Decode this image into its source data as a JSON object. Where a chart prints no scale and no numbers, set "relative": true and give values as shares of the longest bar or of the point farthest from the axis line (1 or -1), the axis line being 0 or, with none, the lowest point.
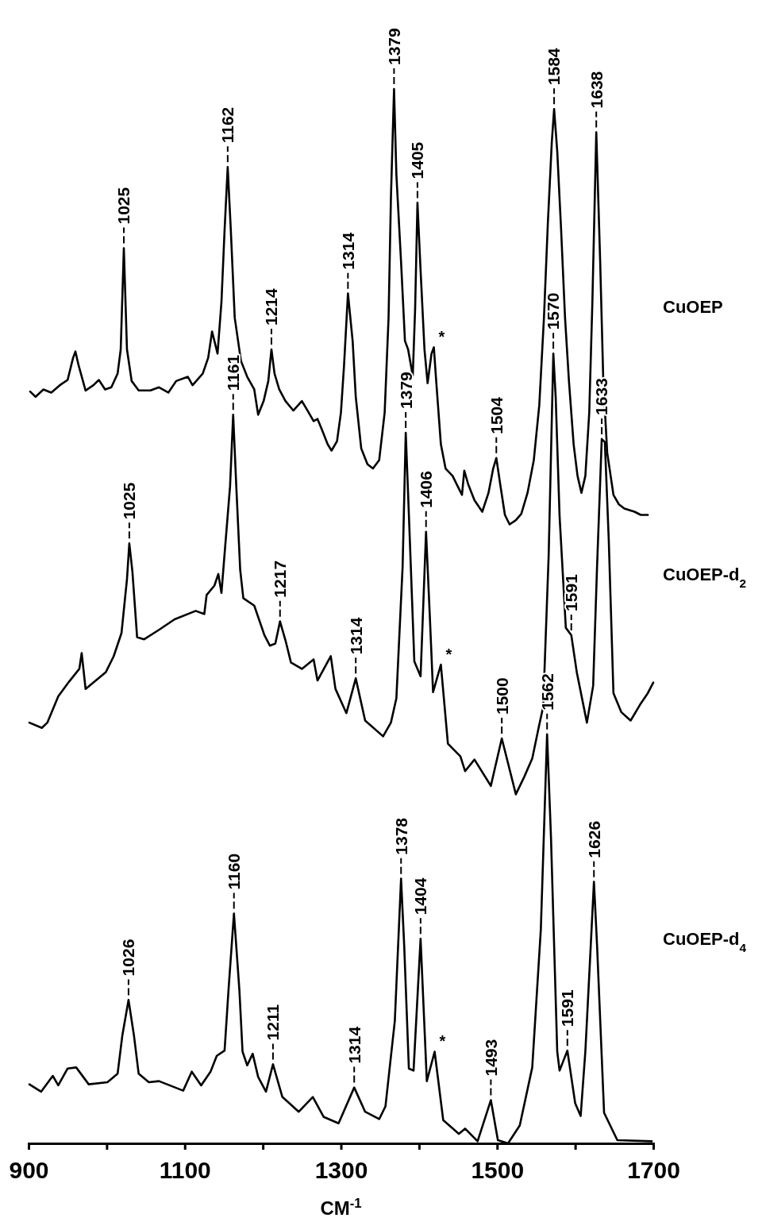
{
  "chart_data": {
    "type": "line",
    "relative": true,
    "xlabel": "CM$^{-1}$",
    "xlim": [
      900,
      1700
    ],
    "xticks": [
      900,
      {
        "value": 1000,
        "label": null
      },
      1100,
      {
        "value": 1200,
        "label": null
      },
      1300,
      {
        "value": 1400,
        "label": null
      },
      1500,
      {
        "value": 1600,
        "label": null
      },
      1700
    ],
    "tick_labels": "x",
    "line_style": "solid",
    "marker": "none",
    "series": [
      {
        "name": "CuOEP",
        "color": "#000000",
        "x": [
          902,
          909,
          919,
          929,
          940,
          950,
          957,
          960,
          964,
          973,
          983,
          990,
          998,
          1006,
          1014,
          1018,
          1022,
          1026,
          1032,
          1041,
          1056,
          1067,
          1079,
          1089,
          1104,
          1110,
          1123,
          1130,
          1135,
          1142,
          1147,
          1151,
          1155,
          1159,
          1164,
          1172,
          1180,
          1189,
          1194,
          1201,
          1207,
          1211,
          1215,
          1221,
          1229,
          1239,
          1250,
          1258,
          1265,
          1270,
          1275,
          1283,
          1288,
          1295,
          1300,
          1304,
          1309,
          1315,
          1319,
          1326,
          1334,
          1341,
          1349,
          1356,
          1361,
          1364,
          1368,
          1371,
          1377,
          1382,
          1386,
          1392,
          1395,
          1398,
          1402,
          1407,
          1411,
          1416,
          1419,
          1422,
          1428,
          1434,
          1443,
          1451,
          1455,
          1458,
          1463,
          1471,
          1481,
          1489,
          1495,
          1499,
          1504,
          1510,
          1516,
          1524,
          1531,
          1539,
          1547,
          1554,
          1560,
          1565,
          1570,
          1573,
          1577,
          1582,
          1587,
          1592,
          1598,
          1603,
          1608,
          1613,
          1618,
          1622,
          1627,
          1632,
          1636,
          1641,
          1649,
          1656,
          1663,
          1676,
          1684,
          1693
        ],
        "values": [
          0.713,
          0.708,
          0.715,
          0.712,
          0.719,
          0.724,
          0.745,
          0.751,
          0.738,
          0.714,
          0.719,
          0.724,
          0.715,
          0.717,
          0.73,
          0.753,
          0.849,
          0.753,
          0.723,
          0.714,
          0.714,
          0.717,
          0.712,
          0.723,
          0.727,
          0.719,
          0.73,
          0.745,
          0.77,
          0.749,
          0.798,
          0.866,
          0.926,
          0.866,
          0.783,
          0.742,
          0.727,
          0.715,
          0.691,
          0.704,
          0.723,
          0.753,
          0.73,
          0.715,
          0.704,
          0.695,
          0.704,
          0.694,
          0.685,
          0.687,
          0.678,
          0.663,
          0.657,
          0.666,
          0.693,
          0.738,
          0.806,
          0.761,
          0.708,
          0.659,
          0.644,
          0.64,
          0.648,
          0.693,
          0.783,
          0.896,
          1.0,
          0.919,
          0.836,
          0.761,
          0.753,
          0.728,
          0.791,
          0.892,
          0.828,
          0.753,
          0.721,
          0.749,
          0.755,
          0.723,
          0.663,
          0.64,
          0.633,
          0.621,
          0.615,
          0.638,
          0.625,
          0.61,
          0.599,
          0.617,
          0.64,
          0.65,
          0.625,
          0.596,
          0.587,
          0.591,
          0.597,
          0.617,
          0.648,
          0.7,
          0.783,
          0.873,
          0.949,
          0.981,
          0.941,
          0.866,
          0.783,
          0.723,
          0.663,
          0.633,
          0.617,
          0.633,
          0.693,
          0.798,
          0.959,
          0.836,
          0.723,
          0.655,
          0.615,
          0.606,
          0.602,
          0.599,
          0.596,
          0.596
        ]
      },
      {
        "name": "CuOEP-d$_{2}$",
        "color": "#000000",
        "x": [
          901,
          917,
          924,
          938,
          952,
          965,
          968,
          973,
          999,
          1009,
          1019,
          1026,
          1029,
          1033,
          1039,
          1048,
          1067,
          1087,
          1114,
          1125,
          1128,
          1138,
          1143,
          1147,
          1151,
          1158,
          1162,
          1166,
          1171,
          1175,
          1189,
          1202,
          1209,
          1216,
          1222,
          1229,
          1236,
          1250,
          1265,
          1270,
          1287,
          1293,
          1307,
          1319,
          1331,
          1354,
          1364,
          1371,
          1379,
          1383,
          1387,
          1394,
          1402,
          1409,
          1414,
          1418,
          1428,
          1437,
          1453,
          1459,
          1471,
          1492,
          1506,
          1524,
          1535,
          1545,
          1554,
          1559,
          1566,
          1572,
          1575,
          1580,
          1588,
          1595,
          1602,
          1615,
          1623,
          1628,
          1634,
          1638,
          1643,
          1649,
          1659,
          1671,
          1683,
          1693,
          1700
        ],
        "values": [
          0.399,
          0.394,
          0.399,
          0.424,
          0.438,
          0.45,
          0.465,
          0.431,
          0.447,
          0.462,
          0.484,
          0.535,
          0.569,
          0.542,
          0.48,
          0.478,
          0.487,
          0.497,
          0.505,
          0.502,
          0.52,
          0.529,
          0.54,
          0.522,
          0.559,
          0.623,
          0.691,
          0.623,
          0.544,
          0.517,
          0.51,
          0.482,
          0.472,
          0.474,
          0.495,
          0.477,
          0.456,
          0.45,
          0.459,
          0.439,
          0.462,
          0.431,
          0.408,
          0.441,
          0.401,
          0.386,
          0.399,
          0.422,
          0.547,
          0.674,
          0.597,
          0.457,
          0.443,
          0.58,
          0.497,
          0.428,
          0.454,
          0.379,
          0.367,
          0.353,
          0.364,
          0.339,
          0.384,
          0.331,
          0.348,
          0.365,
          0.397,
          0.414,
          0.557,
          0.749,
          0.708,
          0.595,
          0.489,
          0.482,
          0.447,
          0.399,
          0.434,
          0.547,
          0.668,
          0.665,
          0.572,
          0.427,
          0.409,
          0.401,
          0.416,
          0.427,
          0.437
        ]
      },
      {
        "name": "CuOEP-d$_{4}$",
        "color": "#000000",
        "x": [
          901,
          916,
          931,
          938,
          950,
          961,
          977,
          1001,
          1014,
          1020,
          1028,
          1035,
          1041,
          1054,
          1067,
          1098,
          1109,
          1121,
          1133,
          1141,
          1151,
          1156,
          1163,
          1170,
          1174,
          1180,
          1187,
          1194,
          1204,
          1213,
          1225,
          1246,
          1264,
          1278,
          1297,
          1317,
          1331,
          1349,
          1357,
          1369,
          1377,
          1381,
          1387,
          1393,
          1402,
          1410,
          1420,
          1431,
          1451,
          1459,
          1475,
          1492,
          1501,
          1514,
          1529,
          1545,
          1556,
          1564,
          1569,
          1577,
          1580,
          1590,
          1600,
          1607,
          1613,
          1619,
          1624,
          1628,
          1637,
          1654,
          1698
        ],
        "values": [
          0.056,
          0.049,
          0.064,
          0.055,
          0.071,
          0.072,
          0.056,
          0.058,
          0.066,
          0.102,
          0.136,
          0.102,
          0.066,
          0.058,
          0.059,
          0.05,
          0.068,
          0.055,
          0.068,
          0.083,
          0.088,
          0.145,
          0.218,
          0.145,
          0.087,
          0.074,
          0.085,
          0.063,
          0.049,
          0.075,
          0.044,
          0.03,
          0.044,
          0.025,
          0.019,
          0.053,
          0.03,
          0.023,
          0.035,
          0.116,
          0.251,
          0.188,
          0.071,
          0.069,
          0.194,
          0.059,
          0.087,
          0.022,
          0.009,
          0.014,
          0.002,
          0.041,
          0.003,
          0,
          0.017,
          0.072,
          0.203,
          0.388,
          0.29,
          0.087,
          0.069,
          0.088,
          0.038,
          0.026,
          0.087,
          0.174,
          0.248,
          0.188,
          0.029,
          0.003,
          0.002
        ]
      }
    ],
    "annotations": [
      {
        "text": "1025",
        "x": 1022,
        "y": 0.849
      },
      {
        "text": "1162",
        "x": 1155,
        "y": 0.926
      },
      {
        "text": "1214",
        "x": 1211,
        "y": 0.753
      },
      {
        "text": "1314",
        "x": 1309,
        "y": 0.806
      },
      {
        "text": "1379",
        "x": 1368,
        "y": 1.0
      },
      {
        "text": "1405",
        "x": 1398,
        "y": 0.892
      },
      {
        "text": "*",
        "x": 1419,
        "y": 0.755
      },
      {
        "text": "1504",
        "x": 1499,
        "y": 0.65
      },
      {
        "text": "1584",
        "x": 1573,
        "y": 0.981
      },
      {
        "text": "1638",
        "x": 1627,
        "y": 0.959
      },
      {
        "text": "1025",
        "x": 1029,
        "y": 0.569
      },
      {
        "text": "1161",
        "x": 1162,
        "y": 0.691
      },
      {
        "text": "1217",
        "x": 1222,
        "y": 0.495
      },
      {
        "text": "1314",
        "x": 1319,
        "y": 0.441
      },
      {
        "text": "1379",
        "x": 1383,
        "y": 0.674
      },
      {
        "text": "1406",
        "x": 1409,
        "y": 0.58
      },
      {
        "text": "*",
        "x": 1428,
        "y": 0.454
      },
      {
        "text": "1500",
        "x": 1506,
        "y": 0.384
      },
      {
        "text": "1570",
        "x": 1572,
        "y": 0.749
      },
      {
        "text": "1591",
        "x": 1595,
        "y": 0.482
      },
      {
        "text": "1633",
        "x": 1634,
        "y": 0.668
      },
      {
        "text": "1026",
        "x": 1028,
        "y": 0.136
      },
      {
        "text": "1160",
        "x": 1163,
        "y": 0.218
      },
      {
        "text": "1211",
        "x": 1213,
        "y": 0.075
      },
      {
        "text": "1314",
        "x": 1317,
        "y": 0.053
      },
      {
        "text": "1378",
        "x": 1377,
        "y": 0.251
      },
      {
        "text": "1404",
        "x": 1402,
        "y": 0.194
      },
      {
        "text": "*",
        "x": 1420,
        "y": 0.087
      },
      {
        "text": "1493",
        "x": 1492,
        "y": 0.041
      },
      {
        "text": "1562",
        "x": 1564,
        "y": 0.388
      },
      {
        "text": "1591",
        "x": 1590,
        "y": 0.088
      },
      {
        "text": "1626",
        "x": 1624,
        "y": 0.248
      }
    ]
  }
}
